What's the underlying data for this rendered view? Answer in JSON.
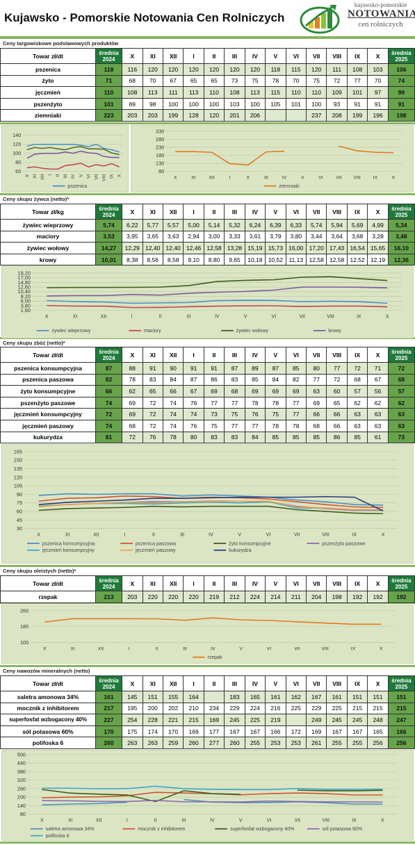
{
  "header": {
    "title": "Kujawsko - Pomorskie Notowania Cen Rolniczych",
    "logo_line1": "kujawsko-pomorskie",
    "logo_line2": "NOTOWANIA",
    "logo_line3": "cen rolniczych"
  },
  "colors": {
    "green_dark": "#1f7a3a",
    "green_avg": "#66a34a",
    "chart_bg": "#dbe5c4",
    "divider": "#8ab561"
  },
  "months": [
    "X",
    "XI",
    "XII",
    "I",
    "II",
    "III",
    "IV",
    "V",
    "VI",
    "VII",
    "VIII",
    "IX",
    "X"
  ],
  "avg_header_2024": [
    "średnia",
    "2024"
  ],
  "avg_header_2025": [
    "średnia",
    "2025"
  ],
  "tables": [
    {
      "label": "Ceny targowiskowe podstawowych produktów",
      "unit_header": "Towar zł/dt",
      "rows": [
        {
          "name": "pszenica",
          "avg2024": "118",
          "values": [
            "116",
            "120",
            "120",
            "120",
            "120",
            "120",
            "120",
            "118",
            "115",
            "120",
            "111",
            "108",
            "103"
          ],
          "avg2025": "106"
        },
        {
          "name": "żyto",
          "avg2024": "71",
          "values": [
            "68",
            "70",
            "67",
            "65",
            "65",
            "73",
            "75",
            "78",
            "70",
            "75",
            "72",
            "77",
            "70"
          ],
          "avg2025": "74"
        },
        {
          "name": "jęczmień",
          "avg2024": "110",
          "values": [
            "108",
            "113",
            "111",
            "113",
            "110",
            "108",
            "113",
            "115",
            "110",
            "110",
            "109",
            "101",
            "97"
          ],
          "avg2025": "99"
        },
        {
          "name": "pszenżyto",
          "avg2024": "101",
          "values": [
            "89",
            "98",
            "100",
            "100",
            "100",
            "103",
            "100",
            "105",
            "101",
            "100",
            "93",
            "91",
            "91"
          ],
          "avg2025": "91"
        },
        {
          "name": "ziemniaki",
          "avg2024": "223",
          "values": [
            "203",
            "203",
            "199",
            "128",
            "120",
            "201",
            "206",
            "",
            "",
            "237",
            "208",
            "199",
            "196"
          ],
          "avg2025": "198"
        }
      ]
    },
    {
      "label": "Ceny skupu żywca (netto)*",
      "unit_header": "Towar zł/kg",
      "rows": [
        {
          "name": "żywiec wieprzowy",
          "avg2024": "5,74",
          "values": [
            "6,22",
            "5,77",
            "5,57",
            "5,00",
            "5,14",
            "5,32",
            "6,24",
            "6,39",
            "6,33",
            "5,74",
            "5,94",
            "5,69",
            "4,99"
          ],
          "avg2025": "5,34"
        },
        {
          "name": "maciory",
          "avg2024": "3,53",
          "values": [
            "3,95",
            "3,65",
            "3,63",
            "2,94",
            "3,00",
            "3,33",
            "3,61",
            "3,79",
            "3,80",
            "3,44",
            "3,64",
            "3,68",
            "3,28"
          ],
          "avg2025": "3,48"
        },
        {
          "name": "żywiec wołowy",
          "avg2024": "14,27",
          "values": [
            "12,29",
            "12,40",
            "12,40",
            "12,46",
            "12,58",
            "13,28",
            "15,19",
            "15,73",
            "16,00",
            "17,20",
            "17,43",
            "16,54",
            "15,65"
          ],
          "avg2025": "16,10"
        },
        {
          "name": "krowy",
          "avg2024": "10,01",
          "values": [
            "8,38",
            "8,56",
            "8,58",
            "9,10",
            "8,80",
            "9,65",
            "10,18",
            "10,52",
            "11,13",
            "12,58",
            "12,58",
            "12,52",
            "12,19"
          ],
          "avg2025": "12,36"
        }
      ]
    },
    {
      "label": "Ceny skupu zbóż (netto)*",
      "unit_header": "Towar zł/dt",
      "rows": [
        {
          "name": "pszenica konsumpcyjna",
          "avg2024": "87",
          "values": [
            "88",
            "91",
            "90",
            "91",
            "91",
            "87",
            "89",
            "87",
            "85",
            "80",
            "77",
            "72",
            "71"
          ],
          "avg2025": "72"
        },
        {
          "name": "pszenica paszowa",
          "avg2024": "82",
          "values": [
            "78",
            "83",
            "84",
            "87",
            "86",
            "83",
            "85",
            "84",
            "82",
            "77",
            "72",
            "68",
            "67"
          ],
          "avg2025": "68"
        },
        {
          "name": "żyto konsumpcyjne",
          "avg2024": "66",
          "values": [
            "62",
            "65",
            "66",
            "67",
            "69",
            "68",
            "69",
            "69",
            "69",
            "63",
            "60",
            "57",
            "56"
          ],
          "avg2025": "57"
        },
        {
          "name": "pszenżyto paszowe",
          "avg2024": "74",
          "values": [
            "69",
            "72",
            "74",
            "76",
            "77",
            "77",
            "78",
            "78",
            "77",
            "69",
            "65",
            "62",
            "62"
          ],
          "avg2025": "62"
        },
        {
          "name": "jęczmień konsumpcyjny",
          "avg2024": "72",
          "values": [
            "69",
            "72",
            "74",
            "74",
            "73",
            "75",
            "76",
            "75",
            "77",
            "66",
            "66",
            "63",
            "63"
          ],
          "avg2025": "63"
        },
        {
          "name": "jęczmień paszowy",
          "avg2024": "74",
          "values": [
            "68",
            "72",
            "74",
            "76",
            "75",
            "77",
            "77",
            "78",
            "78",
            "68",
            "66",
            "63",
            "63"
          ],
          "avg2025": "63"
        },
        {
          "name": "kukurydza",
          "avg2024": "81",
          "values": [
            "72",
            "76",
            "78",
            "80",
            "83",
            "83",
            "84",
            "85",
            "85",
            "85",
            "86",
            "85",
            "61"
          ],
          "avg2025": "73"
        }
      ]
    },
    {
      "label": "Ceny skupu oleistych (netto)*",
      "unit_header": "Towar zł/dt",
      "rows": [
        {
          "name": "rzepak",
          "avg2024": "213",
          "values": [
            "203",
            "220",
            "220",
            "220",
            "219",
            "212",
            "224",
            "214",
            "211",
            "204",
            "198",
            "192",
            "192"
          ],
          "avg2025": "192"
        }
      ]
    },
    {
      "label": "Ceny nawozów mineralnych (netto)",
      "unit_header": "Towar zł/dt",
      "rows": [
        {
          "name": "saletra amonowa 34%",
          "avg2024": "161",
          "values": [
            "145",
            "151",
            "155",
            "164",
            "",
            "183",
            "165",
            "161",
            "162",
            "167",
            "161",
            "151",
            "151"
          ],
          "avg2025": "151"
        },
        {
          "name": "mocznik z inhibitorem",
          "avg2024": "217",
          "values": [
            "195",
            "200",
            "202",
            "210",
            "234",
            "229",
            "224",
            "216",
            "225",
            "229",
            "225",
            "215",
            "215"
          ],
          "avg2025": "215"
        },
        {
          "name": "superfosfat wzbogacony 40%",
          "avg2024": "227",
          "values": [
            "254",
            "228",
            "221",
            "215",
            "169",
            "245",
            "225",
            "219",
            "",
            "249",
            "245",
            "245",
            "248"
          ],
          "avg2025": "247"
        },
        {
          "name": "sól potasowa 60%",
          "avg2024": "170",
          "values": [
            "175",
            "174",
            "170",
            "169",
            "177",
            "167",
            "167",
            "166",
            "172",
            "169",
            "167",
            "167",
            "165"
          ],
          "avg2025": "166"
        },
        {
          "name": "polifoska 6",
          "avg2024": "260",
          "values": [
            "263",
            "263",
            "259",
            "260",
            "277",
            "260",
            "255",
            "253",
            "253",
            "261",
            "255",
            "255",
            "256"
          ],
          "avg2025": "256"
        }
      ]
    }
  ],
  "chart_data": [
    {
      "type": "line",
      "x": [
        "X",
        "XI",
        "XII",
        "I",
        "II",
        "III",
        "IV",
        "V",
        "VI",
        "VII",
        "VIII",
        "IX",
        "X"
      ],
      "ylim": [
        60,
        140
      ],
      "yticks": [
        "60",
        "80",
        "100",
        "120",
        "140"
      ],
      "legend": "bottom",
      "series": [
        {
          "name": "pszenica",
          "color": "#4a8fc4",
          "values": [
            116,
            120,
            120,
            120,
            120,
            120,
            120,
            118,
            115,
            120,
            111,
            108,
            103
          ]
        },
        {
          "color": "#c0445a",
          "values": [
            68,
            70,
            67,
            65,
            65,
            73,
            75,
            78,
            70,
            75,
            72,
            77,
            70
          ]
        },
        {
          "color": "#556b2f",
          "values": [
            108,
            113,
            111,
            113,
            110,
            108,
            113,
            115,
            110,
            110,
            109,
            101,
            97
          ]
        },
        {
          "color": "#7a5a9a",
          "values": [
            89,
            98,
            100,
            100,
            100,
            103,
            100,
            105,
            101,
            100,
            93,
            91,
            91
          ]
        }
      ]
    },
    {
      "type": "line",
      "x": [
        "X",
        "XI",
        "XII",
        "I",
        "II",
        "III",
        "IV",
        "V",
        "VI",
        "VII",
        "VIII",
        "IX",
        "X"
      ],
      "ylim": [
        80,
        330
      ],
      "yticks": [
        "80",
        "130",
        "180",
        "230",
        "280",
        "330"
      ],
      "legend": "bottom",
      "series": [
        {
          "name": "ziemniaki",
          "color": "#e07b22",
          "values": [
            203,
            203,
            199,
            128,
            120,
            201,
            206,
            null,
            null,
            237,
            208,
            199,
            196
          ]
        }
      ]
    },
    {
      "type": "line",
      "x": [
        "X",
        "XI",
        "XII",
        "I",
        "II",
        "III",
        "IV",
        "V",
        "VI",
        "VII",
        "VIII",
        "IX",
        "X"
      ],
      "ylim": [
        1.6,
        19.2
      ],
      "yticks": [
        "1,60",
        "3,80",
        "6,00",
        "8,20",
        "10,40",
        "12,60",
        "14,80",
        "17,00",
        "19,20"
      ],
      "legend": "bottom",
      "series": [
        {
          "name": "żywiec wieprzowy",
          "color": "#4a8fc4",
          "values": [
            6.22,
            5.77,
            5.57,
            5.0,
            5.14,
            5.32,
            6.24,
            6.39,
            6.33,
            5.74,
            5.94,
            5.69,
            4.99
          ]
        },
        {
          "name": "maciory",
          "color": "#c0445a",
          "values": [
            3.95,
            3.65,
            3.63,
            2.94,
            3.0,
            3.33,
            3.61,
            3.79,
            3.8,
            3.44,
            3.64,
            3.68,
            3.28
          ]
        },
        {
          "name": "żywiec wołowy",
          "color": "#3f5a1e",
          "values": [
            12.29,
            12.4,
            12.4,
            12.46,
            12.58,
            13.28,
            15.19,
            15.73,
            16.0,
            17.2,
            17.43,
            16.54,
            15.65
          ]
        },
        {
          "name": "krowy",
          "color": "#7a5a9a",
          "values": [
            8.38,
            8.56,
            8.58,
            9.1,
            8.8,
            9.65,
            10.18,
            10.52,
            11.13,
            12.58,
            12.58,
            12.52,
            12.19
          ]
        }
      ]
    },
    {
      "type": "line",
      "x": [
        "X",
        "XI",
        "XII",
        "I",
        "II",
        "III",
        "IV",
        "V",
        "VI",
        "VII",
        "VIII",
        "IX",
        "X"
      ],
      "ylim": [
        30,
        165
      ],
      "yticks": [
        "30",
        "45",
        "60",
        "75",
        "90",
        "105",
        "120",
        "135",
        "150",
        "165"
      ],
      "legend": "bottom",
      "series": [
        {
          "name": "pszenica konsumpcyjna",
          "color": "#4a8fc4",
          "values": [
            88,
            91,
            90,
            91,
            91,
            87,
            89,
            87,
            85,
            80,
            77,
            72,
            71
          ]
        },
        {
          "name": "pszenica paszowa",
          "color": "#d0542e",
          "values": [
            78,
            83,
            84,
            87,
            86,
            83,
            85,
            84,
            82,
            77,
            72,
            68,
            67
          ]
        },
        {
          "name": "żyto konsumpcyjne",
          "color": "#3f5a1e",
          "values": [
            62,
            65,
            66,
            67,
            69,
            68,
            69,
            69,
            69,
            63,
            60,
            57,
            56
          ]
        },
        {
          "name": "pszenżyto paszowe",
          "color": "#8a6aa8",
          "values": [
            69,
            72,
            74,
            76,
            77,
            77,
            78,
            78,
            77,
            69,
            65,
            62,
            62
          ]
        },
        {
          "name": "jęczmień konsumpcyjny",
          "color": "#3aa8c8",
          "values": [
            69,
            72,
            74,
            74,
            73,
            75,
            76,
            75,
            77,
            66,
            66,
            63,
            63
          ]
        },
        {
          "name": "jęczmień paszowy",
          "color": "#f0a050",
          "values": [
            68,
            72,
            74,
            76,
            75,
            77,
            77,
            78,
            78,
            68,
            66,
            63,
            63
          ]
        },
        {
          "name": "kukurydza",
          "color": "#2a3a7a",
          "values": [
            72,
            76,
            78,
            80,
            83,
            83,
            84,
            85,
            85,
            85,
            86,
            85,
            61
          ]
        }
      ]
    },
    {
      "type": "line",
      "x": [
        "X",
        "XI",
        "XII",
        "I",
        "II",
        "III",
        "IV",
        "V",
        "VI",
        "VII",
        "VIII",
        "IX",
        "X"
      ],
      "ylim": [
        100,
        260
      ],
      "yticks": [
        "100",
        "180",
        "260"
      ],
      "legend": "bottom",
      "series": [
        {
          "name": "rzepak",
          "color": "#e07b22",
          "values": [
            203,
            220,
            220,
            220,
            219,
            212,
            224,
            214,
            211,
            204,
            198,
            192,
            192
          ]
        }
      ]
    },
    {
      "type": "line",
      "x": [
        "X",
        "XI",
        "XII",
        "I",
        "II",
        "III",
        "IV",
        "V",
        "VI",
        "VII",
        "VIII",
        "IX",
        "X"
      ],
      "ylim": [
        80,
        500
      ],
      "yticks": [
        "80",
        "140",
        "200",
        "260",
        "320",
        "380",
        "440",
        "500"
      ],
      "legend": "bottom",
      "series": [
        {
          "name": "saletra amonowa 34%",
          "color": "#4a8fc4",
          "values": [
            145,
            151,
            155,
            164,
            null,
            183,
            165,
            161,
            162,
            167,
            161,
            151,
            151
          ]
        },
        {
          "name": "mocznik z inhibitorem",
          "color": "#d0542e",
          "values": [
            195,
            200,
            202,
            210,
            234,
            229,
            224,
            216,
            225,
            229,
            225,
            215,
            215
          ]
        },
        {
          "name": "superfosfat wzbogacony 40%",
          "color": "#3f5a1e",
          "values": [
            254,
            228,
            221,
            215,
            169,
            245,
            225,
            219,
            null,
            249,
            245,
            245,
            248
          ]
        },
        {
          "name": "sól potasowa 60%",
          "color": "#8a6aa8",
          "values": [
            175,
            174,
            170,
            169,
            177,
            167,
            167,
            166,
            172,
            169,
            167,
            167,
            165
          ]
        },
        {
          "name": "polifoska 6",
          "color": "#3aa8c8",
          "values": [
            263,
            263,
            259,
            260,
            277,
            260,
            255,
            253,
            253,
            261,
            255,
            255,
            256
          ]
        }
      ]
    }
  ]
}
